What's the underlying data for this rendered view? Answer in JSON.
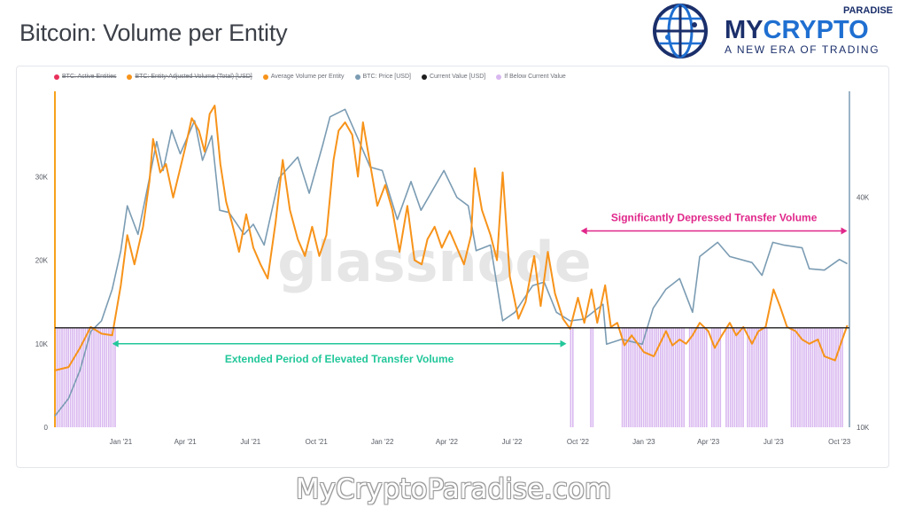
{
  "page": {
    "title": "Bitcoin: Volume per Entity",
    "footer_url": "MyCryptoParadise.com"
  },
  "logo": {
    "line_top": "PARADISE",
    "brand_dark": "MY",
    "brand_accent": "CRYPTO",
    "tagline": "A NEW ERA OF TRADING",
    "colors": {
      "dark": "#1b2f6b",
      "accent": "#1f6fd1"
    }
  },
  "colors": {
    "volume_per_entity": "#f7931a",
    "btc_price": "#7b9cb3",
    "current_value": "#1e1e1e",
    "below_current": "#d9b8f0",
    "active_entities": "#e8305a",
    "annotation_green": "#22c79a",
    "annotation_pink": "#e0278a",
    "left_axis_line": "#f7a21b",
    "right_axis_line": "#7b9cb3"
  },
  "chart_data": {
    "type": "line",
    "legend": [
      {
        "label": "BTC: Active Entities",
        "color": "#e8305a",
        "disabled": true
      },
      {
        "label": "BTC: Entity-Adjusted Volume (Total) [USD]",
        "color": "#f7931a",
        "disabled": true
      },
      {
        "label": "Average Volume per Entity",
        "color": "#f7931a",
        "disabled": false
      },
      {
        "label": "BTC: Price [USD]",
        "color": "#7b9cb3",
        "disabled": false
      },
      {
        "label": "Current Value [USD]",
        "color": "#1e1e1e",
        "disabled": false
      },
      {
        "label": "If Below Current Value",
        "color": "#d9b8f0",
        "disabled": false
      }
    ],
    "watermark": "glassnode",
    "x_range": [
      "2020-10-01",
      "2023-10-15"
    ],
    "x_ticks": [
      {
        "label": "Jan '21",
        "date": "2021-01-01"
      },
      {
        "label": "Apr '21",
        "date": "2021-04-01"
      },
      {
        "label": "Jul '21",
        "date": "2021-07-01"
      },
      {
        "label": "Oct '21",
        "date": "2021-10-01"
      },
      {
        "label": "Jan '22",
        "date": "2022-01-01"
      },
      {
        "label": "Apr '22",
        "date": "2022-04-01"
      },
      {
        "label": "Jul '22",
        "date": "2022-07-01"
      },
      {
        "label": "Oct '22",
        "date": "2022-10-01"
      },
      {
        "label": "Jan '23",
        "date": "2023-01-01"
      },
      {
        "label": "Apr '23",
        "date": "2023-04-01"
      },
      {
        "label": "Jul '23",
        "date": "2023-07-01"
      },
      {
        "label": "Oct '23",
        "date": "2023-10-01"
      }
    ],
    "y_left": {
      "range": [
        0,
        40000
      ],
      "ticks": [
        {
          "label": "0",
          "value": 0
        },
        {
          "label": "10K",
          "value": 10000
        },
        {
          "label": "20K",
          "value": 20000
        },
        {
          "label": "30K",
          "value": 30000
        }
      ]
    },
    "y_right": {
      "scale": "log",
      "range": [
        10000,
        75000
      ],
      "ticks": [
        {
          "label": "10K",
          "value": 10000
        },
        {
          "label": "40K",
          "value": 40000
        }
      ]
    },
    "current_value": 11900,
    "series": [
      {
        "name": "Average Volume per Entity",
        "axis": "left",
        "points": [
          [
            "2020-10-01",
            6800
          ],
          [
            "2020-10-20",
            7200
          ],
          [
            "2020-11-05",
            9500
          ],
          [
            "2020-11-20",
            12000
          ],
          [
            "2020-12-05",
            11200
          ],
          [
            "2020-12-20",
            11000
          ],
          [
            "2021-01-01",
            17000
          ],
          [
            "2021-01-10",
            23000
          ],
          [
            "2021-01-20",
            19500
          ],
          [
            "2021-02-01",
            24000
          ],
          [
            "2021-02-10",
            29500
          ],
          [
            "2021-02-15",
            34500
          ],
          [
            "2021-02-25",
            30500
          ],
          [
            "2021-03-05",
            31500
          ],
          [
            "2021-03-15",
            27500
          ],
          [
            "2021-03-25",
            31000
          ],
          [
            "2021-04-01",
            33500
          ],
          [
            "2021-04-10",
            37000
          ],
          [
            "2021-04-20",
            35500
          ],
          [
            "2021-04-28",
            33000
          ],
          [
            "2021-05-05",
            37500
          ],
          [
            "2021-05-12",
            38500
          ],
          [
            "2021-05-20",
            31500
          ],
          [
            "2021-05-28",
            27000
          ],
          [
            "2021-06-05",
            24500
          ],
          [
            "2021-06-15",
            21000
          ],
          [
            "2021-06-25",
            25500
          ],
          [
            "2021-07-05",
            21500
          ],
          [
            "2021-07-15",
            19500
          ],
          [
            "2021-07-25",
            17800
          ],
          [
            "2021-08-05",
            24500
          ],
          [
            "2021-08-15",
            32000
          ],
          [
            "2021-08-25",
            26000
          ],
          [
            "2021-09-05",
            22500
          ],
          [
            "2021-09-15",
            20500
          ],
          [
            "2021-09-25",
            24000
          ],
          [
            "2021-10-05",
            20500
          ],
          [
            "2021-10-15",
            23000
          ],
          [
            "2021-10-25",
            32000
          ],
          [
            "2021-11-01",
            35500
          ],
          [
            "2021-11-10",
            36500
          ],
          [
            "2021-11-20",
            35000
          ],
          [
            "2021-11-28",
            30000
          ],
          [
            "2021-12-05",
            36500
          ],
          [
            "2021-12-15",
            31500
          ],
          [
            "2021-12-25",
            26500
          ],
          [
            "2022-01-05",
            29000
          ],
          [
            "2022-01-15",
            26000
          ],
          [
            "2022-01-25",
            21000
          ],
          [
            "2022-02-05",
            26500
          ],
          [
            "2022-02-15",
            20000
          ],
          [
            "2022-02-25",
            19500
          ],
          [
            "2022-03-05",
            22500
          ],
          [
            "2022-03-15",
            24000
          ],
          [
            "2022-03-25",
            21500
          ],
          [
            "2022-04-05",
            23500
          ],
          [
            "2022-04-15",
            21500
          ],
          [
            "2022-04-25",
            19500
          ],
          [
            "2022-05-05",
            23000
          ],
          [
            "2022-05-10",
            31000
          ],
          [
            "2022-05-20",
            26000
          ],
          [
            "2022-06-01",
            23000
          ],
          [
            "2022-06-10",
            20000
          ],
          [
            "2022-06-18",
            30500
          ],
          [
            "2022-06-28",
            18000
          ],
          [
            "2022-07-10",
            13000
          ],
          [
            "2022-07-20",
            15000
          ],
          [
            "2022-08-01",
            20500
          ],
          [
            "2022-08-10",
            14500
          ],
          [
            "2022-08-20",
            21000
          ],
          [
            "2022-08-30",
            16000
          ],
          [
            "2022-09-10",
            13000
          ],
          [
            "2022-09-20",
            11800
          ],
          [
            "2022-10-01",
            15500
          ],
          [
            "2022-10-10",
            12500
          ],
          [
            "2022-10-20",
            16500
          ],
          [
            "2022-10-28",
            12500
          ],
          [
            "2022-11-08",
            17000
          ],
          [
            "2022-11-16",
            12000
          ],
          [
            "2022-11-25",
            12500
          ],
          [
            "2022-12-05",
            9800
          ],
          [
            "2022-12-15",
            11000
          ],
          [
            "2023-01-01",
            9000
          ],
          [
            "2023-01-15",
            8500
          ],
          [
            "2023-02-01",
            11500
          ],
          [
            "2023-02-10",
            9800
          ],
          [
            "2023-02-20",
            10500
          ],
          [
            "2023-03-01",
            10000
          ],
          [
            "2023-03-10",
            11000
          ],
          [
            "2023-03-20",
            12500
          ],
          [
            "2023-04-01",
            11500
          ],
          [
            "2023-04-10",
            9500
          ],
          [
            "2023-04-20",
            11000
          ],
          [
            "2023-05-01",
            12500
          ],
          [
            "2023-05-10",
            11000
          ],
          [
            "2023-05-20",
            12000
          ],
          [
            "2023-06-01",
            10000
          ],
          [
            "2023-06-10",
            11500
          ],
          [
            "2023-06-20",
            12000
          ],
          [
            "2023-07-01",
            16500
          ],
          [
            "2023-07-10",
            14500
          ],
          [
            "2023-07-20",
            12000
          ],
          [
            "2023-08-01",
            11500
          ],
          [
            "2023-08-10",
            10500
          ],
          [
            "2023-08-20",
            10000
          ],
          [
            "2023-09-01",
            10500
          ],
          [
            "2023-09-10",
            8500
          ],
          [
            "2023-09-25",
            8000
          ],
          [
            "2023-10-05",
            10500
          ],
          [
            "2023-10-12",
            12200
          ]
        ]
      },
      {
        "name": "BTC: Price [USD]",
        "axis": "right",
        "points": [
          [
            "2020-10-01",
            10700
          ],
          [
            "2020-10-20",
            11900
          ],
          [
            "2020-11-05",
            14100
          ],
          [
            "2020-11-20",
            17800
          ],
          [
            "2020-12-05",
            19000
          ],
          [
            "2020-12-20",
            23000
          ],
          [
            "2021-01-01",
            29000
          ],
          [
            "2021-01-10",
            38000
          ],
          [
            "2021-01-25",
            32000
          ],
          [
            "2021-02-10",
            45000
          ],
          [
            "2021-02-20",
            56000
          ],
          [
            "2021-03-01",
            47000
          ],
          [
            "2021-03-13",
            60000
          ],
          [
            "2021-03-25",
            52000
          ],
          [
            "2021-04-14",
            63500
          ],
          [
            "2021-04-25",
            50000
          ],
          [
            "2021-05-08",
            58000
          ],
          [
            "2021-05-19",
            37000
          ],
          [
            "2021-06-01",
            36500
          ],
          [
            "2021-06-22",
            32000
          ],
          [
            "2021-07-05",
            34000
          ],
          [
            "2021-07-20",
            30000
          ],
          [
            "2021-08-10",
            45000
          ],
          [
            "2021-09-05",
            51000
          ],
          [
            "2021-09-21",
            41000
          ],
          [
            "2021-10-10",
            55000
          ],
          [
            "2021-10-20",
            65000
          ],
          [
            "2021-11-10",
            68000
          ],
          [
            "2021-11-28",
            57000
          ],
          [
            "2021-12-15",
            48000
          ],
          [
            "2022-01-01",
            47000
          ],
          [
            "2022-01-22",
            35000
          ],
          [
            "2022-02-10",
            44000
          ],
          [
            "2022-02-24",
            37000
          ],
          [
            "2022-03-28",
            47000
          ],
          [
            "2022-04-15",
            40000
          ],
          [
            "2022-05-01",
            38000
          ],
          [
            "2022-05-12",
            29000
          ],
          [
            "2022-06-01",
            30000
          ],
          [
            "2022-06-18",
            19000
          ],
          [
            "2022-07-05",
            20000
          ],
          [
            "2022-07-30",
            23500
          ],
          [
            "2022-08-15",
            24000
          ],
          [
            "2022-09-01",
            20000
          ],
          [
            "2022-09-20",
            19000
          ],
          [
            "2022-10-10",
            19200
          ],
          [
            "2022-11-05",
            21000
          ],
          [
            "2022-11-10",
            16500
          ],
          [
            "2022-12-01",
            17000
          ],
          [
            "2022-12-30",
            16500
          ],
          [
            "2023-01-14",
            20500
          ],
          [
            "2023-02-01",
            23000
          ],
          [
            "2023-02-20",
            24500
          ],
          [
            "2023-03-10",
            20000
          ],
          [
            "2023-03-20",
            28000
          ],
          [
            "2023-04-14",
            30500
          ],
          [
            "2023-05-01",
            28000
          ],
          [
            "2023-06-01",
            27000
          ],
          [
            "2023-06-15",
            25000
          ],
          [
            "2023-06-30",
            30500
          ],
          [
            "2023-07-15",
            30000
          ],
          [
            "2023-08-10",
            29500
          ],
          [
            "2023-08-20",
            26000
          ],
          [
            "2023-09-10",
            25800
          ],
          [
            "2023-10-01",
            27500
          ],
          [
            "2023-10-12",
            26800
          ]
        ]
      }
    ],
    "below_current_ranges": [
      [
        "2020-10-01",
        "2020-12-25"
      ],
      [
        "2022-09-20",
        "2022-09-24"
      ],
      [
        "2022-10-18",
        "2022-10-21"
      ],
      [
        "2022-12-01",
        "2023-02-28"
      ],
      [
        "2023-03-05",
        "2023-03-30"
      ],
      [
        "2023-04-05",
        "2023-04-18"
      ],
      [
        "2023-04-25",
        "2023-05-20"
      ],
      [
        "2023-05-25",
        "2023-06-22"
      ],
      [
        "2023-07-25",
        "2023-10-05"
      ]
    ],
    "annotations": [
      {
        "text": "Extended Period of Elevated Transfer Volume",
        "color": "#22c79a",
        "from": "2020-12-20",
        "to": "2022-09-15",
        "value": 10000
      },
      {
        "text": "Significantly Depressed Transfer Volume",
        "color": "#e0278a",
        "from": "2022-10-05",
        "to": "2023-10-12",
        "value": 23500
      }
    ]
  }
}
